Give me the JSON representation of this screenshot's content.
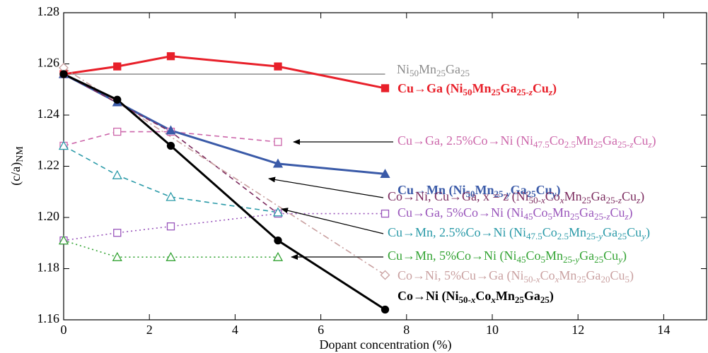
{
  "chart_data": {
    "type": "line",
    "x_label": "Dopant concentration (%)",
    "y_label": "(c/a)NM",
    "xlim": [
      0,
      15
    ],
    "ylim": [
      1.16,
      1.28
    ],
    "xticks": [
      0,
      2,
      4,
      6,
      8,
      10,
      12,
      14
    ],
    "yticks": [
      1.16,
      1.18,
      {
        "value": 1.2,
        "label": "1.20"
      },
      1.22,
      1.24,
      1.26,
      1.28
    ],
    "series": [
      {
        "name": "Ni50Mn25Ga25",
        "color": "#8c8c8c",
        "style": "solid",
        "marker": "none",
        "bold": false,
        "x": [
          0,
          7.5
        ],
        "values": [
          1.256,
          1.256
        ]
      },
      {
        "name": "Cu→Ga (Ni50Mn25Ga25-zCuz)",
        "color": "#e8202a",
        "style": "solid",
        "marker": "square",
        "bold": true,
        "x": [
          0,
          1.25,
          2.5,
          5,
          7.5
        ],
        "values": [
          1.256,
          1.259,
          1.263,
          1.259,
          1.2505
        ]
      },
      {
        "name": "Cu→Ga, 2.5%Co→Ni (Ni47.5Co2.5Mn25Ga25-zCuz)",
        "color": "#cc66aa",
        "style": "dashed",
        "marker": "open-square",
        "bold": false,
        "x": [
          0,
          1.25,
          2.5,
          5
        ],
        "values": [
          1.228,
          1.2335,
          1.2335,
          1.2295
        ]
      },
      {
        "name": "Cu→Mn (Ni50Mn25-yGa25Cuy)",
        "color": "#3a5aa8",
        "style": "solid",
        "marker": "triangle",
        "bold": true,
        "x": [
          0,
          1.25,
          2.5,
          5,
          7.5
        ],
        "values": [
          1.256,
          1.245,
          1.234,
          1.221,
          1.217
        ]
      },
      {
        "name": "Co→Ni, Cu→Ga, x = z (Ni50-xCoxMn25Ga25-zCuz)",
        "color": "#7b2a5e",
        "style": "dashed",
        "marker": "none",
        "bold": false,
        "x": [
          0,
          2.5,
          5
        ],
        "values": [
          1.256,
          1.2335,
          1.2015
        ]
      },
      {
        "name": "Cu→Ga, 5%Co→Ni (Ni45Co5Mn25Ga25-zCuz)",
        "color": "#9955bb",
        "style": "dotted",
        "marker": "open-square",
        "bold": false,
        "x": [
          0,
          1.25,
          2.5,
          5,
          7.5
        ],
        "values": [
          1.191,
          1.194,
          1.1965,
          1.2015,
          1.2015
        ]
      },
      {
        "name": "Cu→Mn, 2.5%Co→Ni (Ni47.5Co2.5Mn25-yGa25Cuy)",
        "color": "#2a9aa8",
        "style": "dashed",
        "marker": "open-triangle",
        "bold": false,
        "x": [
          0,
          1.25,
          2.5,
          5
        ],
        "values": [
          1.228,
          1.2165,
          1.208,
          1.202
        ]
      },
      {
        "name": "Cu→Mn, 5%Co→Ni (Ni45Co5Mn25-yGa25Cuy)",
        "color": "#33a333",
        "style": "dotted",
        "marker": "open-triangle",
        "bold": false,
        "x": [
          0,
          1.25,
          2.5,
          5
        ],
        "values": [
          1.191,
          1.1845,
          1.1845,
          1.1845
        ]
      },
      {
        "name": "Co→Ni, 5%Cu→Ga (Ni50-xCoxMn25Ga20Cu5)",
        "color": "#c9a0a0",
        "style": "dashdot",
        "marker": "open-diamond",
        "bold": false,
        "x": [
          0,
          7.5
        ],
        "values": [
          1.2585,
          1.1775
        ]
      },
      {
        "name": "Co→Ni (Ni50-xCoxMn25Ga25)",
        "color": "#000000",
        "style": "solid",
        "marker": "circle",
        "bold": true,
        "x": [
          0,
          1.25,
          2.5,
          5,
          7.5
        ],
        "values": [
          1.256,
          1.246,
          1.228,
          1.191,
          1.164
        ]
      }
    ]
  }
}
